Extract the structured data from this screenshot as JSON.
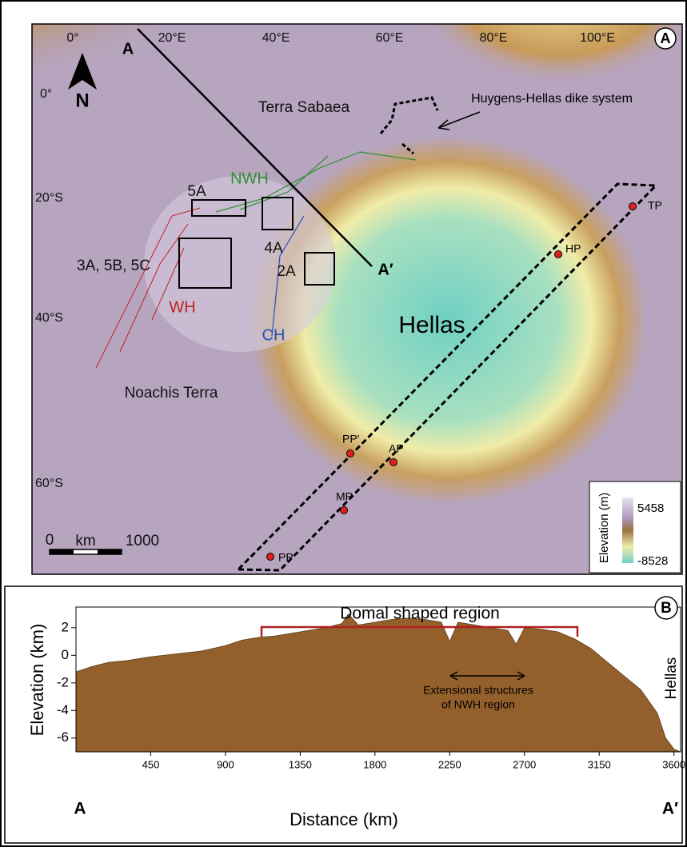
{
  "map": {
    "panel_label": "A",
    "lon_ticks": [
      "0°",
      "20°E",
      "40°E",
      "60°E",
      "80°E",
      "100°E"
    ],
    "lat_ticks": [
      "0°",
      "20°S",
      "40°S",
      "60°S"
    ],
    "north": "N",
    "profile_start": "A",
    "profile_end": "A′",
    "regions": [
      "Terra Sabaea",
      "Noachis Terra",
      "Hellas"
    ],
    "dike_label": "Huygens-Hellas dike system",
    "structures": [
      "NWH",
      "WH",
      "CH"
    ],
    "boxes": [
      "5A",
      "4A",
      "3A, 5B, 5C",
      "2A"
    ],
    "sites": [
      "TP",
      "HP",
      "PP′",
      "AP",
      "MP",
      "PP"
    ],
    "scale_bar": {
      "start": "0",
      "unit": "km",
      "end": "1000"
    },
    "legend": {
      "title": "Elevation (m)",
      "max": "5458",
      "min": "-8528"
    }
  },
  "chart_data": {
    "type": "area",
    "panel_label": "B",
    "xlabel": "Distance (km)",
    "ylabel": "Elevation (km)",
    "start_label": "A",
    "end_label": "A′",
    "annotations": [
      "Domal shaped region",
      "Extensional structures",
      "of NWH region",
      "Hellas"
    ],
    "color": "#93602b",
    "x": [
      0,
      100,
      200,
      300,
      450,
      600,
      750,
      900,
      1000,
      1100,
      1200,
      1350,
      1500,
      1600,
      1640,
      1700,
      1800,
      1900,
      2000,
      2100,
      2200,
      2250,
      2300,
      2400,
      2500,
      2600,
      2650,
      2700,
      2800,
      2900,
      3000,
      3100,
      3200,
      3300,
      3400,
      3500,
      3550,
      3600,
      3640
    ],
    "values": [
      -1.2,
      -0.8,
      -0.5,
      -0.4,
      -0.1,
      0.1,
      0.3,
      0.7,
      1.1,
      1.3,
      1.4,
      1.7,
      2.0,
      2.3,
      3.0,
      2.2,
      2.4,
      2.6,
      2.7,
      2.6,
      2.4,
      1.0,
      2.4,
      2.2,
      2.0,
      1.8,
      0.8,
      2.0,
      1.9,
      1.7,
      1.2,
      0.5,
      -0.5,
      -1.5,
      -2.5,
      -4.2,
      -6.0,
      -6.8,
      -7.0
    ],
    "xlim": [
      0,
      3640
    ],
    "ylim": [
      -7,
      3.5
    ],
    "xticks": [
      450,
      900,
      1350,
      1800,
      2250,
      2700,
      3150,
      3600
    ],
    "yticks": [
      2,
      0,
      -2,
      -4,
      -6
    ]
  }
}
